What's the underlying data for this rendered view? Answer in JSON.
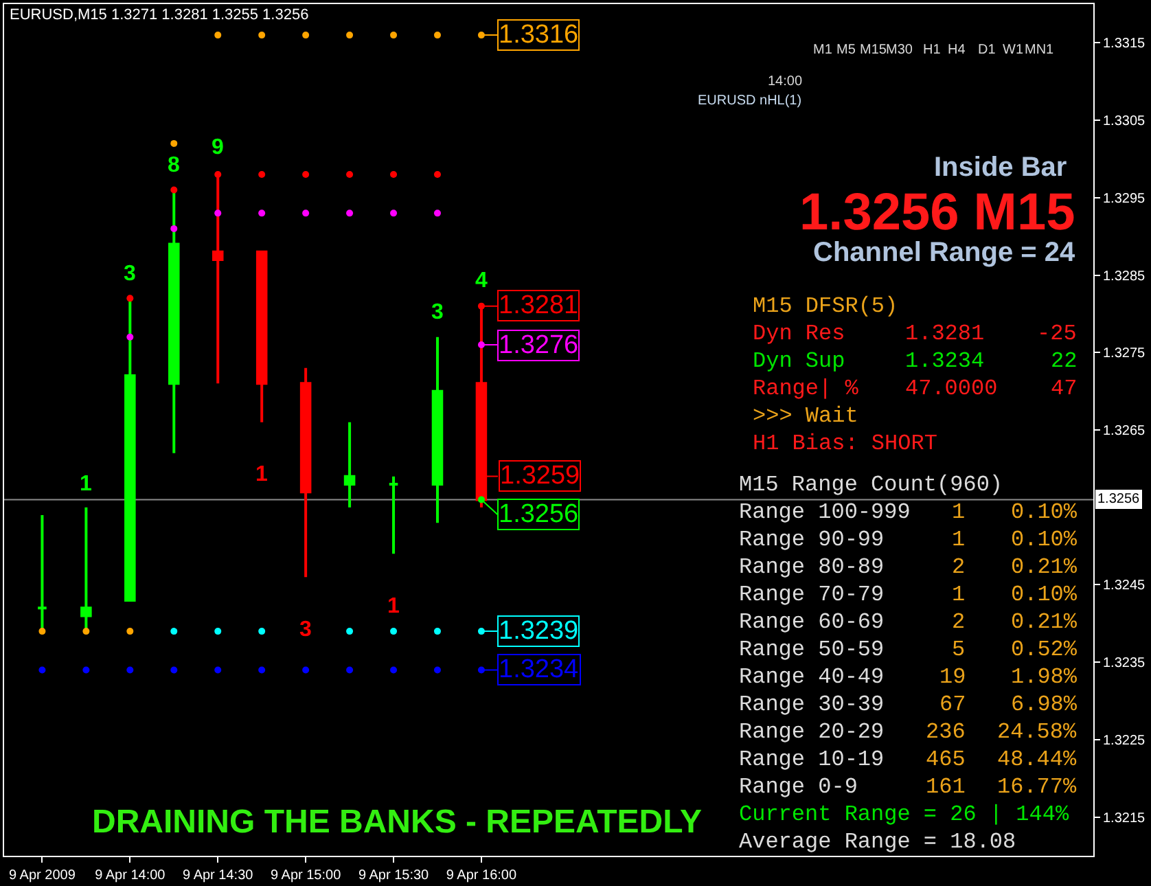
{
  "chart_data": {
    "type": "candlestick",
    "title": "EURUSD,M15 1.3271 1.3281 1.3255 1.3256",
    "x": [
      "2009-04-09T13:30",
      "2009-04-09T13:45",
      "2009-04-09T14:00",
      "2009-04-09T14:15",
      "2009-04-09T14:30",
      "2009-04-09T14:45",
      "2009-04-09T15:00",
      "2009-04-09T15:15",
      "2009-04-09T15:30",
      "2009-04-09T15:45",
      "2009-04-09T16:00"
    ],
    "ohlc": [
      [
        1.3242,
        1.3254,
        1.3239,
        1.3242
      ],
      [
        1.3241,
        1.3255,
        1.3239,
        1.3242
      ],
      [
        1.3243,
        1.3282,
        1.3243,
        1.3272
      ],
      [
        1.3271,
        1.3296,
        1.3262,
        1.3289
      ],
      [
        1.3288,
        1.3298,
        1.3271,
        1.3287
      ],
      [
        1.3288,
        1.3288,
        1.3266,
        1.3271
      ],
      [
        1.3271,
        1.3273,
        1.3246,
        1.3257
      ],
      [
        1.3258,
        1.3266,
        1.3255,
        1.3259
      ],
      [
        1.3258,
        1.3259,
        1.3249,
        1.3258
      ],
      [
        1.3258,
        1.3277,
        1.3253,
        1.327
      ],
      [
        1.3271,
        1.3281,
        1.3255,
        1.3256
      ]
    ],
    "colors": [
      "#00ff00",
      "#00ff00",
      "#00ff00",
      "#00ff00",
      "#ff0000",
      "#ff0000",
      "#ff0000",
      "#00ff00",
      "#00ff00",
      "#00ff00",
      "#ff0000"
    ],
    "xlim": [
      "2009-04-09T13:17",
      "2009-04-09T19:29"
    ],
    "xticks": [
      {
        "value": "2009-04-09T13:30",
        "label": "9 Apr 2009"
      },
      {
        "value": "2009-04-09T14:00",
        "label": "9 Apr 14:00"
      },
      {
        "value": "2009-04-09T14:30",
        "label": "9 Apr 14:30"
      },
      {
        "value": "2009-04-09T15:00",
        "label": "9 Apr 15:00"
      },
      {
        "value": "2009-04-09T15:30",
        "label": "9 Apr 15:30"
      },
      {
        "value": "2009-04-09T16:00",
        "label": "9 Apr 16:00"
      }
    ],
    "ylim": [
      1.321,
      1.332
    ],
    "yticks": [
      1.3315,
      1.3305,
      1.3295,
      1.3285,
      1.3275,
      1.3265,
      1.3245,
      1.3235,
      1.3225,
      1.3215
    ],
    "series": [
      {
        "type": "scatter",
        "marker": "circle",
        "color": "#ffa500",
        "x": [
          "2009-04-09T13:30",
          "2009-04-09T13:45",
          "2009-04-09T14:00",
          "2009-04-09T14:15",
          "2009-04-09T14:30",
          "2009-04-09T14:45",
          "2009-04-09T15:00",
          "2009-04-09T15:15",
          "2009-04-09T15:30",
          "2009-04-09T15:45",
          "2009-04-09T16:00"
        ],
        "values": [
          1.3239,
          1.3239,
          1.3239,
          1.3302,
          1.3316,
          1.3316,
          1.3316,
          1.3316,
          1.3316,
          1.3316,
          1.3316
        ],
        "value_labels": [
          null,
          null,
          null,
          null,
          null,
          null,
          null,
          null,
          null,
          null,
          "1.3316"
        ]
      },
      {
        "type": "scatter",
        "marker": "circle",
        "color": "#ff0000",
        "x": [
          "2009-04-09T14:00",
          "2009-04-09T14:15",
          "2009-04-09T14:30",
          "2009-04-09T14:45",
          "2009-04-09T15:00",
          "2009-04-09T15:15",
          "2009-04-09T15:30",
          "2009-04-09T15:45",
          "2009-04-09T16:00"
        ],
        "values": [
          1.3282,
          1.3296,
          1.3298,
          1.3298,
          1.3298,
          1.3298,
          1.3298,
          1.3298,
          1.3281
        ],
        "value_labels": [
          null,
          null,
          null,
          null,
          null,
          null,
          null,
          null,
          "1.3281"
        ]
      },
      {
        "type": "scatter",
        "marker": "circle",
        "color": "#ff00ff",
        "x": [
          "2009-04-09T14:00",
          "2009-04-09T14:15",
          "2009-04-09T14:30",
          "2009-04-09T14:45",
          "2009-04-09T15:00",
          "2009-04-09T15:15",
          "2009-04-09T15:30",
          "2009-04-09T15:45",
          "2009-04-09T16:00"
        ],
        "values": [
          1.3277,
          1.3291,
          1.3293,
          1.3293,
          1.3293,
          1.3293,
          1.3293,
          1.3293,
          1.3276
        ],
        "value_labels": [
          null,
          null,
          null,
          null,
          null,
          null,
          null,
          null,
          "1.3276"
        ]
      },
      {
        "type": "scatter",
        "marker": "circle",
        "color": "#00ffff",
        "x": [
          "2009-04-09T14:15",
          "2009-04-09T14:30",
          "2009-04-09T14:45",
          "2009-04-09T15:00",
          "2009-04-09T15:15",
          "2009-04-09T15:30",
          "2009-04-09T15:45",
          "2009-04-09T16:00"
        ],
        "values": [
          1.3239,
          1.3239,
          1.3239,
          null,
          1.3239,
          1.3239,
          1.3239,
          1.3239
        ],
        "value_labels": [
          null,
          null,
          null,
          null,
          null,
          null,
          null,
          "1.3239"
        ]
      },
      {
        "type": "scatter",
        "marker": "circle",
        "color": "#0000ff",
        "x": [
          "2009-04-09T13:30",
          "2009-04-09T13:45",
          "2009-04-09T14:00",
          "2009-04-09T14:15",
          "2009-04-09T14:30",
          "2009-04-09T14:45",
          "2009-04-09T15:00",
          "2009-04-09T15:15",
          "2009-04-09T15:30",
          "2009-04-09T15:45",
          "2009-04-09T16:00"
        ],
        "values": [
          1.3234,
          1.3234,
          1.3234,
          1.3234,
          1.3234,
          1.3234,
          1.3234,
          1.3234,
          1.3234,
          1.3234,
          1.3234
        ],
        "value_labels": [
          null,
          null,
          null,
          null,
          null,
          null,
          null,
          null,
          null,
          null,
          "1.3234"
        ]
      },
      {
        "type": "scatter",
        "marker": "circle",
        "color": "#00ff00",
        "x": [
          "2009-04-09T16:00"
        ],
        "values": [
          1.3256
        ],
        "value_labels": [
          "1.3256"
        ]
      }
    ],
    "ref_lines": [
      {
        "axis": "y",
        "value": 1.3256,
        "label": "1.3256",
        "color": "#8c8c8c"
      }
    ],
    "annotations": [
      "M1",
      "M5",
      "M15",
      "M30",
      "H1",
      "H4",
      "D1",
      "W1",
      "MN1",
      "14:00",
      "EURUSD nHL(1)",
      "Inside Bar",
      "1.3256 M15",
      "Channel Range = 24",
      "M15 DFSR(5)",
      "Dyn Res",
      "1.3281",
      "-25",
      "Dyn Sup",
      "1.3234",
      "22",
      "Range| %",
      "47.0000",
      "47",
      ">>> Wait",
      "H1 Bias: SHORT",
      "M15 Range Count(960)",
      "Range 100-999",
      "1",
      "0.10%",
      "Range 90-99",
      "1",
      "0.10%",
      "Range 80-89",
      "2",
      "0.21%",
      "Range 70-79",
      "1",
      "0.10%",
      "Range 60-69",
      "2",
      "0.21%",
      "Range 50-59",
      "5",
      "0.52%",
      "Range 40-49",
      "19",
      "1.98%",
      "Range 30-39",
      "67",
      "6.98%",
      "Range 20-29",
      "236",
      "24.58%",
      "Range 10-19",
      "465",
      "48.44%",
      "Range 0-9",
      "161",
      "16.77%",
      "Current Range = 26 | 144%",
      "Average Range = 18.08",
      "DRAINING THE BANKS - REPEATEDLY",
      "1",
      "3",
      "8",
      "9",
      "1",
      "3",
      "1",
      "3",
      "4",
      "1.3259"
    ],
    "grid": false
  }
}
